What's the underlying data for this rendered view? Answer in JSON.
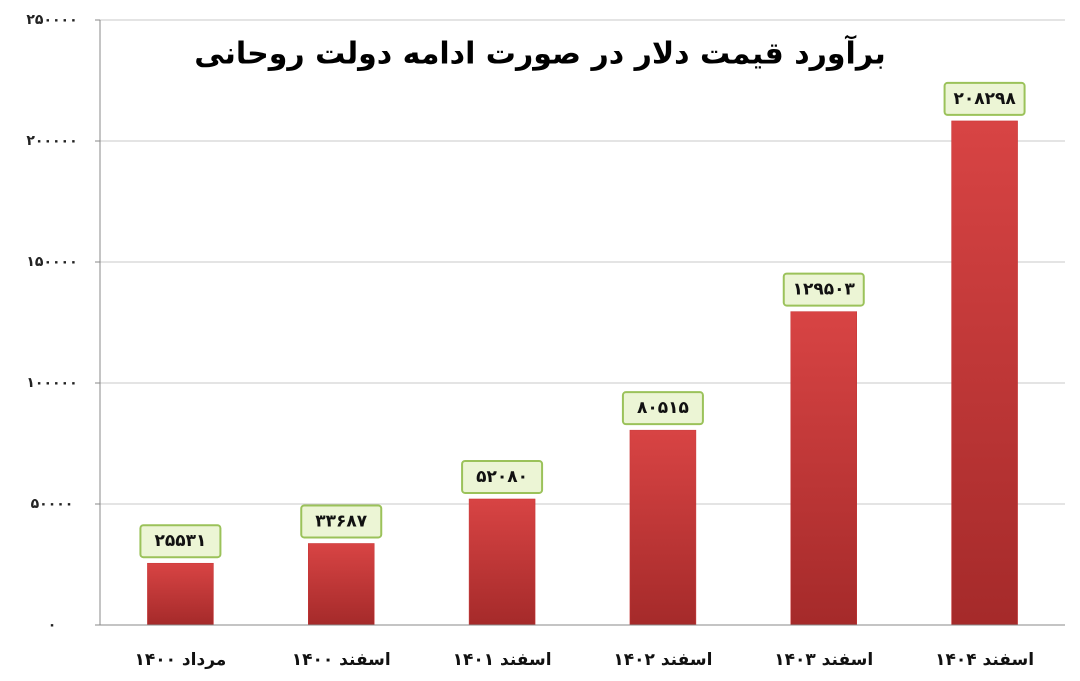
{
  "chart_data": {
    "type": "bar",
    "title": "برآورد قیمت دلار در صورت ادامه دولت روحانی",
    "categories": [
      "مرداد ۱۴۰۰",
      "اسفند ۱۴۰۰",
      "اسفند ۱۴۰۱",
      "اسفند ۱۴۰۲",
      "اسفند ۱۴۰۳",
      "اسفند ۱۴۰۴"
    ],
    "values": [
      25531,
      33687,
      52080,
      80515,
      129503,
      208298
    ],
    "value_labels": [
      "۲۵۵۳۱",
      "۳۳۶۸۷",
      "۵۲۰۸۰",
      "۸۰۵۱۵",
      "۱۲۹۵۰۳",
      "۲۰۸۲۹۸"
    ],
    "color": "#c83434",
    "ylim": [
      0,
      250000
    ],
    "yticks": [
      {
        "value": 0,
        "label": "۰"
      },
      {
        "value": 50000,
        "label": "۵۰۰۰۰"
      },
      {
        "value": 100000,
        "label": "۱۰۰۰۰۰"
      },
      {
        "value": 150000,
        "label": "۱۵۰۰۰۰"
      },
      {
        "value": 200000,
        "label": "۲۰۰۰۰۰"
      },
      {
        "value": 250000,
        "label": "۲۵۰۰۰۰"
      }
    ],
    "grid": true
  }
}
